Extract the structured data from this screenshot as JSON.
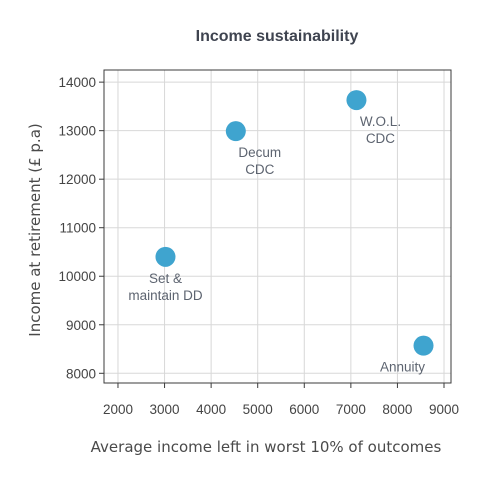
{
  "chart_data": {
    "type": "scatter",
    "title": "Income sustainability",
    "xlabel": "Average income left in worst 10% of outcomes",
    "ylabel": "Income at retirement (£ p.a)",
    "xlim": [
      1700,
      9150
    ],
    "ylim": [
      7800,
      14250
    ],
    "x_ticks": [
      2000,
      3000,
      4000,
      5000,
      6000,
      7000,
      8000,
      9000
    ],
    "y_ticks": [
      8000,
      9000,
      10000,
      11000,
      12000,
      13000,
      14000
    ],
    "grid": true,
    "legend": "none",
    "marker_color": "#3fa4cf",
    "points": [
      {
        "x": 3020,
        "y": 10400,
        "label_lines": [
          "Set &",
          "maintain DD"
        ],
        "label_pos": "below"
      },
      {
        "x": 4530,
        "y": 12990,
        "label_lines": [
          "Decum",
          "CDC"
        ],
        "label_pos": "below-right"
      },
      {
        "x": 7120,
        "y": 13630,
        "label_lines": [
          "W.O.L.",
          "CDC"
        ],
        "label_pos": "below-right"
      },
      {
        "x": 8560,
        "y": 8570,
        "label_lines": [
          "Annuity"
        ],
        "label_pos": "below-left"
      }
    ]
  }
}
